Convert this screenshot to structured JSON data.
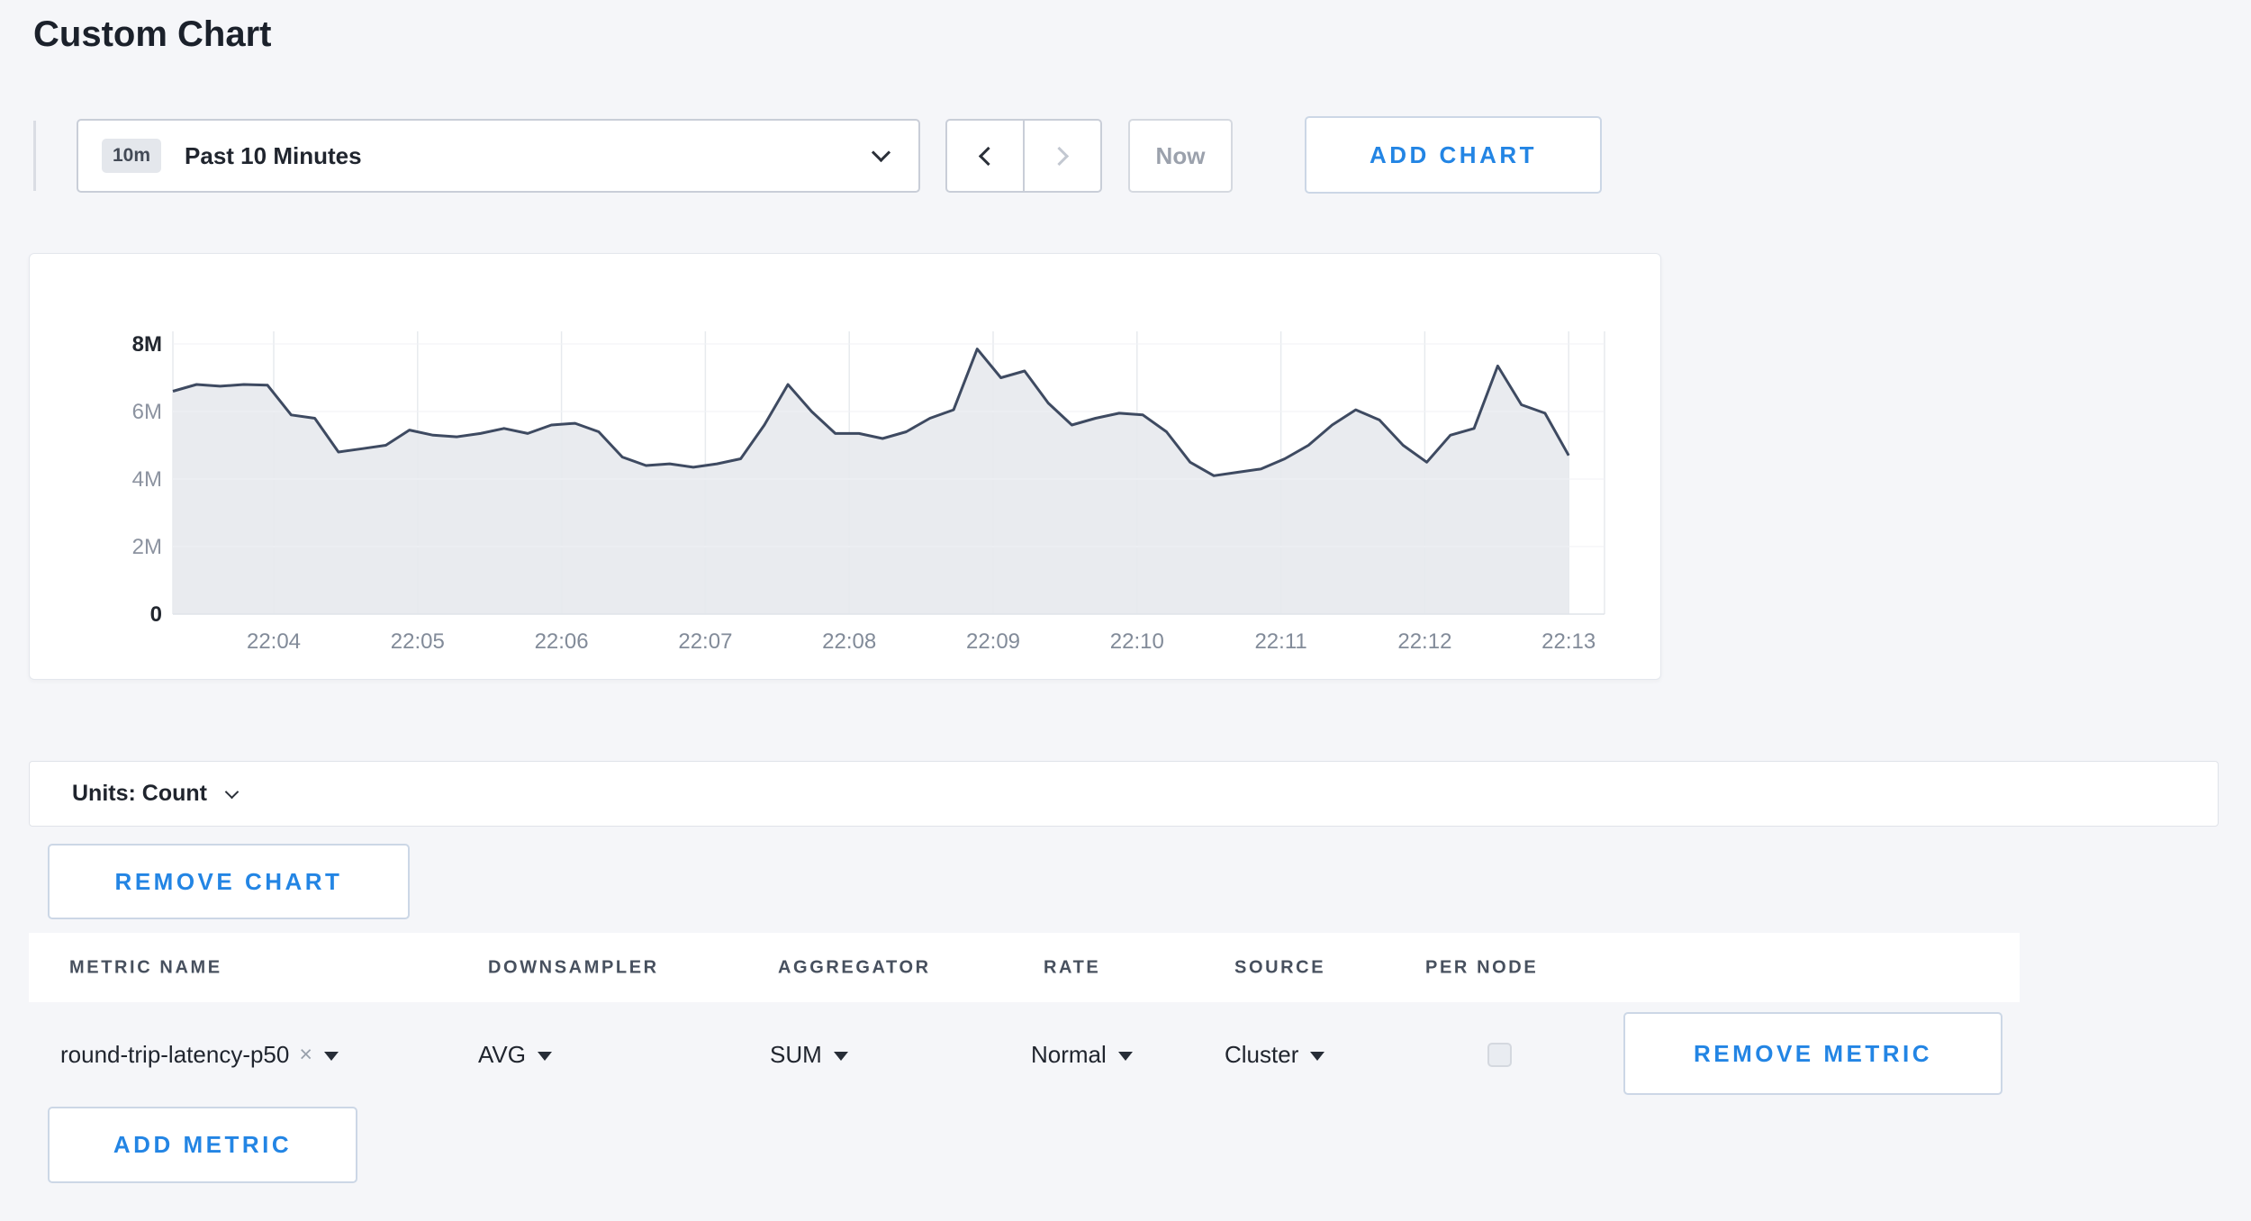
{
  "page": {
    "title": "Custom Chart",
    "background": "#f5f6f9",
    "accent_color": "#2385e4"
  },
  "icons": {
    "time_dropdown": "chevron-down",
    "prev": "chevron-left",
    "next": "chevron-right",
    "units_dropdown": "chevron-down",
    "select_caret": "caret-down",
    "remove_tag": "×"
  },
  "toolbar": {
    "time_selector": {
      "badge": "10m",
      "label": "Past 10 Minutes"
    },
    "next_button_disabled": true,
    "now_button_label": "Now",
    "add_chart_label": "ADD CHART"
  },
  "chart_data": {
    "type": "area",
    "title": "",
    "legend_position": "none",
    "grid": true,
    "line_color": "#3e4a61",
    "fill_color": "#e9ebef",
    "ylim_millions": [
      0,
      8
    ],
    "y_ticks": [
      {
        "label": "0",
        "value_millions": 0,
        "strong": true
      },
      {
        "label": "2M",
        "value_millions": 2,
        "strong": false
      },
      {
        "label": "4M",
        "value_millions": 4,
        "strong": false
      },
      {
        "label": "6M",
        "value_millions": 6,
        "strong": false
      },
      {
        "label": "8M",
        "value_millions": 8,
        "strong": true
      }
    ],
    "x_ticks": [
      "22:04",
      "22:05",
      "22:06",
      "22:07",
      "22:08",
      "22:09",
      "22:10",
      "22:11",
      "22:12",
      "22:13"
    ],
    "series": [
      {
        "name": "round-trip-latency-p50",
        "downsampler": "AVG",
        "aggregator": "SUM",
        "unit": "Count",
        "values_millions": [
          6.6,
          6.8,
          6.75,
          6.8,
          6.78,
          5.9,
          5.8,
          4.8,
          4.9,
          5.0,
          5.45,
          5.3,
          5.25,
          5.35,
          5.5,
          5.35,
          5.6,
          5.65,
          5.4,
          4.65,
          4.4,
          4.45,
          4.35,
          4.45,
          4.6,
          5.6,
          6.8,
          6.0,
          5.35,
          5.35,
          5.2,
          5.4,
          5.8,
          6.05,
          7.85,
          7.0,
          7.2,
          6.25,
          5.6,
          5.8,
          5.95,
          5.9,
          5.4,
          4.5,
          4.1,
          4.2,
          4.3,
          4.6,
          5.0,
          5.6,
          6.05,
          5.75,
          5.0,
          4.5,
          5.3,
          5.5,
          7.35,
          6.2,
          5.95,
          4.7
        ]
      }
    ]
  },
  "units_bar": {
    "label": "Units: Count"
  },
  "chart_actions": {
    "remove_chart_label": "REMOVE CHART"
  },
  "metrics_table": {
    "headers": [
      "METRIC NAME",
      "DOWNSAMPLER",
      "AGGREGATOR",
      "RATE",
      "SOURCE",
      "PER NODE"
    ],
    "rows": [
      {
        "metric_name": "round-trip-latency-p50",
        "downsampler": "AVG",
        "aggregator": "SUM",
        "rate": "Normal",
        "source": "Cluster",
        "per_node_checked": false
      }
    ],
    "remove_metric_label": "REMOVE METRIC",
    "add_metric_label": "ADD METRIC"
  }
}
